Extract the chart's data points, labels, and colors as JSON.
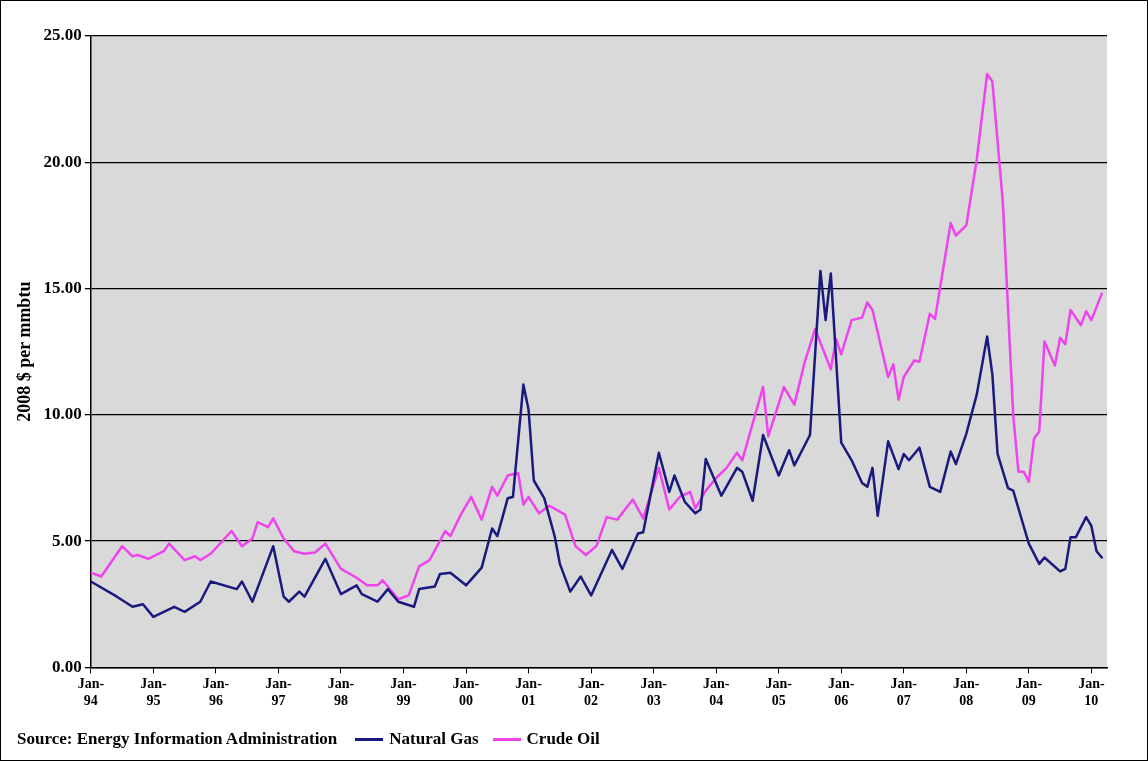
{
  "chart_data": {
    "type": "line",
    "ylabel": "2008 $ per mmbtu",
    "annotations": [
      "Source: Energy Information Administration"
    ],
    "xlim": [
      "1994-01",
      "2010-04"
    ],
    "xticks": [
      {
        "value": "1994-01",
        "label": "Jan-94"
      },
      {
        "value": "1995-01",
        "label": "Jan-95"
      },
      {
        "value": "1996-01",
        "label": "Jan-96"
      },
      {
        "value": "1997-01",
        "label": "Jan-97"
      },
      {
        "value": "1998-01",
        "label": "Jan-98"
      },
      {
        "value": "1999-01",
        "label": "Jan-99"
      },
      {
        "value": "2000-01",
        "label": "Jan-00"
      },
      {
        "value": "2001-01",
        "label": "Jan-01"
      },
      {
        "value": "2002-01",
        "label": "Jan-02"
      },
      {
        "value": "2003-01",
        "label": "Jan-03"
      },
      {
        "value": "2004-01",
        "label": "Jan-04"
      },
      {
        "value": "2005-01",
        "label": "Jan-05"
      },
      {
        "value": "2006-01",
        "label": "Jan-06"
      },
      {
        "value": "2007-01",
        "label": "Jan-07"
      },
      {
        "value": "2008-01",
        "label": "Jan-08"
      },
      {
        "value": "2009-01",
        "label": "Jan-09"
      },
      {
        "value": "2010-01",
        "label": "Jan-10"
      }
    ],
    "ylim": [
      0,
      25
    ],
    "yticks": [
      {
        "value": 0,
        "label": "0.00"
      },
      {
        "value": 5,
        "label": "5.00"
      },
      {
        "value": 10,
        "label": "10.00"
      },
      {
        "value": 15,
        "label": "15.00"
      },
      {
        "value": 20,
        "label": "20.00"
      },
      {
        "value": 25,
        "label": "25.00"
      }
    ],
    "grid": "y",
    "legend": "bottom",
    "marker": "none",
    "line_style": "solid",
    "series": [
      {
        "name": "Natural Gas",
        "color": "#1a1a7e",
        "x": [
          "1994-01",
          "1994-06",
          "1994-09",
          "1994-11",
          "1995-01",
          "1995-05",
          "1995-07",
          "1995-10",
          "1995-12",
          "1996-05",
          "1996-06",
          "1996-08",
          "1996-12",
          "1997-02",
          "1997-03",
          "1997-05",
          "1997-06",
          "1997-10",
          "1998-01",
          "1998-04",
          "1998-05",
          "1998-08",
          "1998-10",
          "1998-12",
          "1999-03",
          "1999-04",
          "1999-07",
          "1999-08",
          "1999-10",
          "2000-01",
          "2000-04",
          "2000-06",
          "2000-07",
          "2000-09",
          "2000-10",
          "2000-12",
          "2001-01",
          "2001-02",
          "2001-04",
          "2001-06",
          "2001-07",
          "2001-09",
          "2001-11",
          "2002-01",
          "2002-05",
          "2002-07",
          "2002-10",
          "2002-11",
          "2003-02",
          "2003-04",
          "2003-05",
          "2003-07",
          "2003-09",
          "2003-10",
          "2003-11",
          "2004-02",
          "2004-05",
          "2004-06",
          "2004-08",
          "2004-10",
          "2005-01",
          "2005-03",
          "2005-04",
          "2005-07",
          "2005-09",
          "2005-10",
          "2005-11",
          "2006-01",
          "2006-03",
          "2006-05",
          "2006-06",
          "2006-07",
          "2006-08",
          "2006-10",
          "2006-12",
          "2007-01",
          "2007-02",
          "2007-04",
          "2007-06",
          "2007-08",
          "2007-10",
          "2007-11",
          "2008-01",
          "2008-03",
          "2008-05",
          "2008-06",
          "2008-07",
          "2008-09",
          "2008-10",
          "2009-01",
          "2009-03",
          "2009-04",
          "2009-07",
          "2009-08",
          "2009-09",
          "2009-10",
          "2009-12",
          "2010-01",
          "2010-02",
          "2010-03"
        ],
        "values": [
          3.4,
          2.8,
          2.4,
          2.5,
          2.0,
          2.4,
          2.2,
          2.6,
          3.4,
          3.1,
          3.4,
          2.6,
          4.8,
          2.8,
          2.6,
          3.0,
          2.8,
          4.3,
          2.9,
          3.25,
          2.9,
          2.6,
          3.1,
          2.6,
          2.4,
          3.1,
          3.2,
          3.7,
          3.75,
          3.25,
          3.95,
          5.5,
          5.2,
          6.7,
          6.75,
          11.2,
          10.2,
          7.4,
          6.7,
          5.2,
          4.1,
          3.0,
          3.6,
          2.85,
          4.65,
          3.9,
          5.3,
          5.35,
          8.5,
          6.95,
          7.6,
          6.55,
          6.1,
          6.25,
          8.25,
          6.8,
          7.9,
          7.75,
          6.6,
          9.2,
          7.6,
          8.6,
          8.0,
          9.2,
          15.7,
          13.75,
          15.6,
          8.9,
          8.2,
          7.3,
          7.15,
          7.9,
          6.0,
          8.95,
          7.85,
          8.45,
          8.2,
          8.7,
          7.15,
          6.95,
          8.55,
          8.05,
          9.25,
          10.8,
          13.1,
          11.6,
          8.45,
          7.1,
          7.0,
          4.9,
          4.1,
          4.35,
          3.8,
          3.9,
          5.15,
          5.15,
          5.95,
          5.6,
          4.6,
          4.35
        ]
      },
      {
        "name": "Crude Oil",
        "color": "#ee44ee",
        "x": [
          "1994-01",
          "1994-03",
          "1994-07",
          "1994-09",
          "1994-10",
          "1994-12",
          "1995-03",
          "1995-04",
          "1995-07",
          "1995-09",
          "1995-10",
          "1995-12",
          "1996-04",
          "1996-06",
          "1996-08",
          "1996-09",
          "1996-11",
          "1996-12",
          "1997-02",
          "1997-04",
          "1997-06",
          "1997-08",
          "1997-10",
          "1998-01",
          "1998-04",
          "1998-06",
          "1998-08",
          "1998-09",
          "1998-12",
          "1999-02",
          "1999-04",
          "1999-06",
          "1999-09",
          "1999-10",
          "1999-12",
          "2000-02",
          "2000-04",
          "2000-06",
          "2000-07",
          "2000-09",
          "2000-11",
          "2000-12",
          "2001-01",
          "2001-03",
          "2001-05",
          "2001-08",
          "2001-10",
          "2001-12",
          "2002-02",
          "2002-04",
          "2002-06",
          "2002-09",
          "2002-11",
          "2003-02",
          "2003-04",
          "2003-06",
          "2003-08",
          "2003-09",
          "2003-11",
          "2004-01",
          "2004-03",
          "2004-05",
          "2004-06",
          "2004-08",
          "2004-10",
          "2004-11",
          "2005-02",
          "2005-04",
          "2005-06",
          "2005-08",
          "2005-11",
          "2005-12",
          "2006-01",
          "2006-03",
          "2006-05",
          "2006-06",
          "2006-07",
          "2006-10",
          "2006-11",
          "2006-12",
          "2007-01",
          "2007-03",
          "2007-04",
          "2007-06",
          "2007-07",
          "2007-10",
          "2007-11",
          "2008-01",
          "2008-03",
          "2008-05",
          "2008-06",
          "2008-08",
          "2008-10",
          "2008-11",
          "2008-12",
          "2009-01",
          "2009-02",
          "2009-03",
          "2009-04",
          "2009-06",
          "2009-07",
          "2009-08",
          "2009-09",
          "2009-11",
          "2009-12",
          "2010-01",
          "2010-03"
        ],
        "values": [
          3.75,
          3.6,
          4.8,
          4.4,
          4.45,
          4.3,
          4.6,
          4.9,
          4.25,
          4.4,
          4.25,
          4.5,
          5.4,
          4.8,
          5.1,
          5.75,
          5.55,
          5.9,
          5.1,
          4.6,
          4.5,
          4.55,
          4.9,
          3.9,
          3.55,
          3.25,
          3.25,
          3.45,
          2.7,
          2.85,
          4.0,
          4.25,
          5.4,
          5.2,
          6.05,
          6.75,
          5.85,
          7.15,
          6.8,
          7.6,
          7.7,
          6.45,
          6.75,
          6.1,
          6.4,
          6.05,
          4.8,
          4.45,
          4.8,
          5.95,
          5.85,
          6.65,
          5.9,
          7.9,
          6.25,
          6.75,
          6.95,
          6.3,
          7.0,
          7.5,
          7.9,
          8.5,
          8.2,
          9.65,
          11.1,
          9.15,
          11.1,
          10.4,
          12.1,
          13.4,
          11.8,
          13.0,
          12.4,
          13.75,
          13.85,
          14.45,
          14.15,
          11.5,
          12.0,
          10.6,
          11.5,
          12.15,
          12.1,
          14.0,
          13.8,
          17.6,
          17.1,
          17.5,
          20.1,
          23.5,
          23.2,
          18.45,
          10.0,
          7.75,
          7.75,
          7.35,
          9.05,
          9.35,
          12.9,
          11.95,
          13.05,
          12.8,
          14.15,
          13.55,
          14.1,
          13.75,
          14.8
        ]
      }
    ]
  }
}
